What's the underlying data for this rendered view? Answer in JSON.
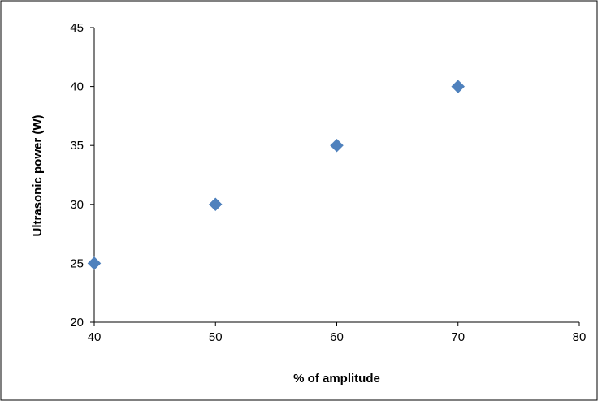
{
  "chart_data": {
    "type": "scatter",
    "title": "",
    "xlabel": "% of amplitude",
    "ylabel": "Ultrasonic power (W)",
    "xlim": [
      40,
      80
    ],
    "ylim": [
      20,
      45
    ],
    "x_ticks": [
      "40",
      "50",
      "60",
      "70",
      "80"
    ],
    "y_ticks": [
      "20",
      "25",
      "30",
      "35",
      "40",
      "45"
    ],
    "grid": false,
    "legend": "none",
    "marker": "diamond",
    "series": [
      {
        "color": "#4F81BD",
        "points": [
          {
            "x": 40,
            "y": 25
          },
          {
            "x": 50,
            "y": 30
          },
          {
            "x": 60,
            "y": 35
          },
          {
            "x": 70,
            "y": 40
          }
        ]
      }
    ]
  }
}
